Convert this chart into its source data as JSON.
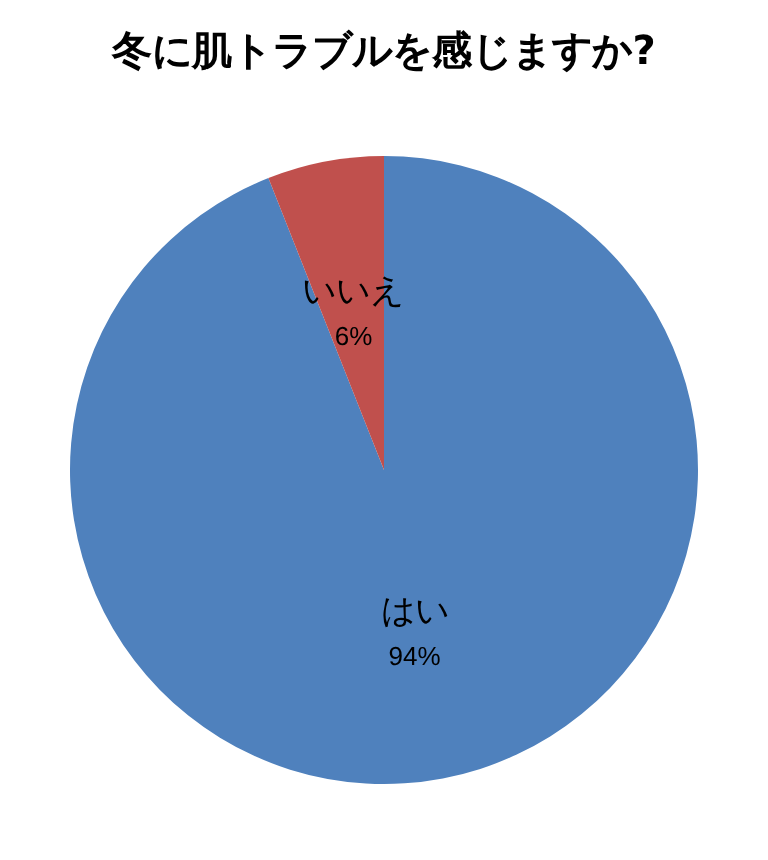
{
  "chart_data": {
    "type": "pie",
    "title": "冬に肌トラブルを感じますか?",
    "categories": [
      "はい",
      "いいえ"
    ],
    "values": [
      94,
      6
    ],
    "colors": [
      "#4f81bd",
      "#c0504d"
    ],
    "value_labels": [
      "94%",
      "6%"
    ],
    "legend": false
  }
}
